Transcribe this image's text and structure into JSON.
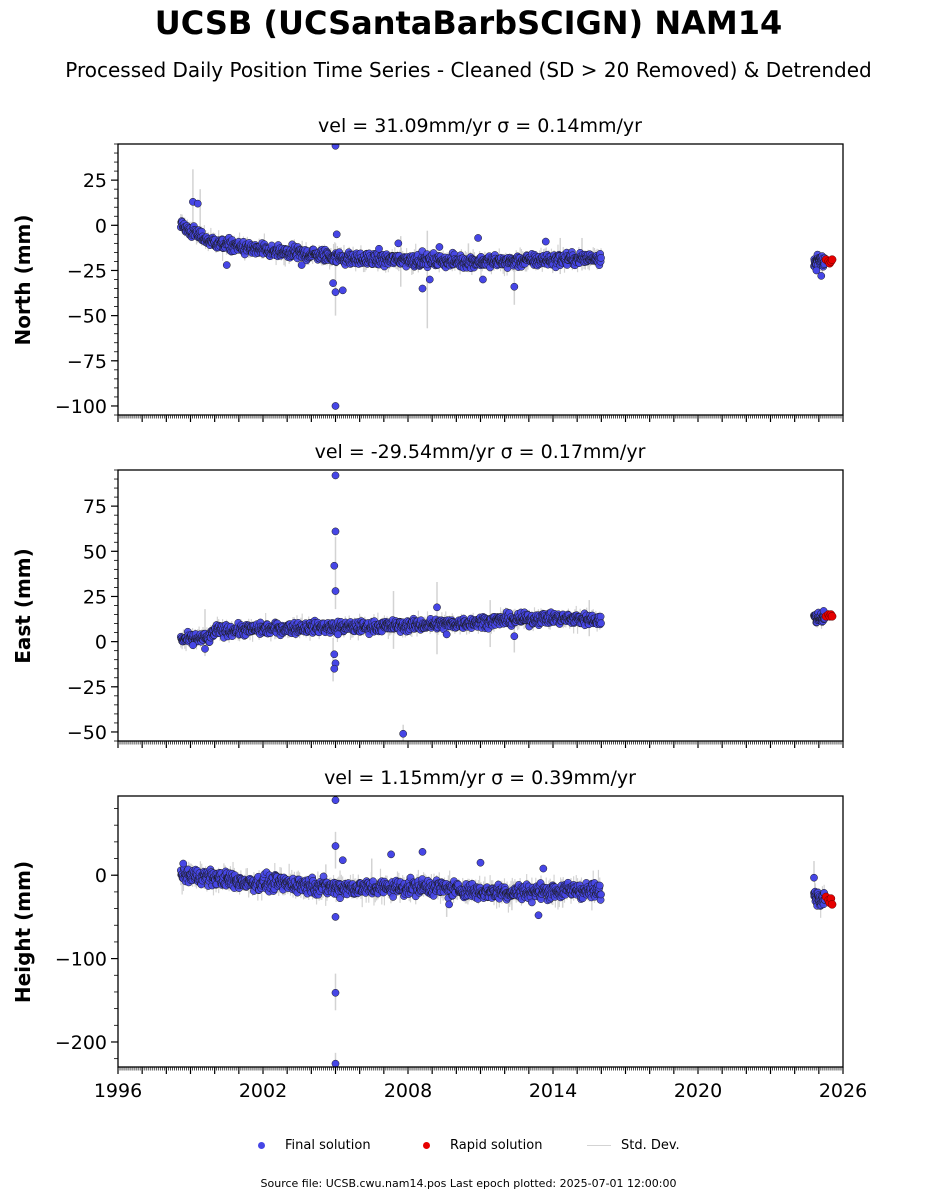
{
  "title": "UCSB (UCSantaBarbSCIGN) NAM14",
  "subtitle": "Processed Daily Position Time Series - Cleaned (SD > 20 Removed) & Detrended",
  "legend": {
    "final": "Final solution",
    "rapid": "Rapid solution",
    "std": "Std. Dev."
  },
  "footer": "Source file: UCSB.cwu.nam14.pos  Last epoch plotted: 2025-07-01 12:00:00",
  "colors": {
    "final": "#4646e6",
    "rapid": "#e60000",
    "std": "#d3d3d3",
    "edge": "#1a1a1a"
  },
  "chart_data": [
    {
      "type": "scatter",
      "title": "vel = 31.09mm/yr   σ = 0.14mm/yr",
      "ylabel": "North (mm)",
      "xlim": [
        1996,
        2026
      ],
      "ylim": [
        -105,
        45
      ],
      "yticks": [
        25,
        0,
        -25,
        -50,
        -75,
        -100
      ],
      "ytick_labels": [
        "25",
        "0",
        "−25",
        "−50",
        "−75",
        "−100"
      ],
      "trend": [
        [
          1998.6,
          0
        ],
        [
          1999.8,
          -9
        ],
        [
          2001,
          -12
        ],
        [
          2002.5,
          -15
        ],
        [
          2004,
          -16
        ],
        [
          2006,
          -19
        ],
        [
          2008,
          -19
        ],
        [
          2010,
          -20
        ],
        [
          2012,
          -20
        ],
        [
          2014,
          -19
        ],
        [
          2016,
          -18
        ],
        [
          2024.8,
          -20
        ],
        [
          2025.5,
          -19
        ]
      ],
      "rapid": [
        [
          2025.3,
          -19
        ],
        [
          2025.4,
          -20
        ],
        [
          2025.45,
          -21
        ],
        [
          2025.5,
          -20
        ],
        [
          2025.55,
          -19
        ]
      ],
      "outliers": [
        [
          2005.0,
          44
        ],
        [
          2005.0,
          -100
        ],
        [
          2005.0,
          -37
        ],
        [
          2005.3,
          -36
        ],
        [
          2004.9,
          -32
        ],
        [
          2005.05,
          -5
        ],
        [
          2008.6,
          -35
        ],
        [
          2008.9,
          -30
        ],
        [
          2012.4,
          -34
        ],
        [
          2003.6,
          -22
        ],
        [
          2010.9,
          -7
        ],
        [
          2007.6,
          -10
        ],
        [
          2009.3,
          -12
        ],
        [
          2011.1,
          -30
        ],
        [
          1999.1,
          13
        ],
        [
          1999.3,
          12
        ],
        [
          2000.5,
          -22
        ],
        [
          2013.7,
          -9
        ],
        [
          2006.8,
          -13
        ],
        [
          2024.9,
          -25
        ],
        [
          2025.1,
          -28
        ]
      ],
      "errorbars": [
        [
          1999.1,
          13,
          18
        ],
        [
          1999.4,
          5,
          15
        ],
        [
          2008.8,
          -30,
          27
        ],
        [
          2005.0,
          -30,
          20
        ],
        [
          2012.4,
          -34,
          10
        ],
        [
          2007.7,
          -20,
          14
        ],
        [
          2010.5,
          -18,
          8
        ],
        [
          2014.3,
          -17,
          10
        ],
        [
          2015.2,
          -16,
          9
        ]
      ]
    },
    {
      "type": "scatter",
      "title": "vel = -29.54mm/yr   σ = 0.17mm/yr",
      "ylabel": "East (mm)",
      "xlim": [
        1996,
        2026
      ],
      "ylim": [
        -55,
        95
      ],
      "yticks": [
        75,
        50,
        25,
        0,
        -25,
        -50
      ],
      "ytick_labels": [
        "75",
        "50",
        "25",
        "0",
        "−25",
        "−50"
      ],
      "trend": [
        [
          1998.6,
          1
        ],
        [
          1999.8,
          2
        ],
        [
          2000,
          6
        ],
        [
          2002,
          7
        ],
        [
          2004,
          8
        ],
        [
          2006,
          8
        ],
        [
          2008,
          9
        ],
        [
          2010,
          10
        ],
        [
          2012,
          12
        ],
        [
          2014,
          13
        ],
        [
          2016,
          12
        ],
        [
          2024.8,
          13
        ],
        [
          2025.5,
          14
        ]
      ],
      "rapid": [
        [
          2025.3,
          14
        ],
        [
          2025.4,
          15
        ],
        [
          2025.45,
          14
        ],
        [
          2025.5,
          15
        ],
        [
          2025.55,
          14
        ]
      ],
      "outliers": [
        [
          2005.0,
          92
        ],
        [
          2005.0,
          61
        ],
        [
          2004.95,
          42
        ],
        [
          2005.0,
          28
        ],
        [
          2004.95,
          -7
        ],
        [
          2005.0,
          -12
        ],
        [
          2004.95,
          -15
        ],
        [
          2007.8,
          -51
        ],
        [
          2009.2,
          19
        ],
        [
          2012.4,
          3
        ],
        [
          1999.6,
          -4
        ],
        [
          1999.1,
          -2
        ],
        [
          2005.1,
          4
        ],
        [
          2009.6,
          4
        ],
        [
          2025.2,
          17
        ]
      ],
      "errorbars": [
        [
          1999.6,
          5,
          13
        ],
        [
          2005.0,
          38,
          20
        ],
        [
          2004.9,
          -10,
          12
        ],
        [
          2007.4,
          12,
          16
        ],
        [
          2009.2,
          13,
          20
        ],
        [
          2011.4,
          10,
          13
        ],
        [
          2012.4,
          2,
          8
        ],
        [
          2015.5,
          13,
          10
        ],
        [
          2007.8,
          -51,
          5
        ]
      ]
    },
    {
      "type": "scatter",
      "title": "vel = 1.15mm/yr   σ = 0.39mm/yr",
      "ylabel": "Height (mm)",
      "xlim": [
        1996,
        2026
      ],
      "ylim": [
        -230,
        95
      ],
      "yticks": [
        0,
        -100,
        -200
      ],
      "ytick_labels": [
        "0",
        "−100",
        "−200"
      ],
      "xticks": [
        1996,
        2002,
        2008,
        2014,
        2020,
        2026
      ],
      "xtick_labels": [
        "1996",
        "2002",
        "2008",
        "2014",
        "2020",
        "2026"
      ],
      "trend": [
        [
          1998.6,
          0
        ],
        [
          1999.8,
          -2
        ],
        [
          2001,
          -8
        ],
        [
          2003,
          -10
        ],
        [
          2005,
          -15
        ],
        [
          2007,
          -15
        ],
        [
          2009,
          -14
        ],
        [
          2011,
          -20
        ],
        [
          2013,
          -20
        ],
        [
          2015,
          -18
        ],
        [
          2016,
          -20
        ],
        [
          2024.8,
          -25
        ],
        [
          2025.5,
          -28
        ]
      ],
      "rapid": [
        [
          2025.3,
          -26
        ],
        [
          2025.4,
          -30
        ],
        [
          2025.45,
          -33
        ],
        [
          2025.5,
          -28
        ],
        [
          2025.55,
          -35
        ]
      ],
      "outliers": [
        [
          2005.0,
          90
        ],
        [
          2005.0,
          35
        ],
        [
          2005.0,
          -50
        ],
        [
          2005.0,
          -141
        ],
        [
          2005.0,
          -226
        ],
        [
          2007.3,
          25
        ],
        [
          2008.6,
          28
        ],
        [
          2011.0,
          15
        ],
        [
          2013.6,
          8
        ],
        [
          2005.3,
          18
        ],
        [
          2013.4,
          -48
        ],
        [
          2009.7,
          -35
        ],
        [
          2024.8,
          -3
        ],
        [
          1998.7,
          14
        ]
      ],
      "errorbars": [
        [
          2005.0,
          -140,
          22
        ],
        [
          2005.0,
          30,
          22
        ],
        [
          2005.0,
          -225,
          12
        ],
        [
          2004.6,
          -5,
          18
        ],
        [
          2006.5,
          5,
          15
        ],
        [
          2009.6,
          -35,
          15
        ],
        [
          2012.3,
          -30,
          12
        ],
        [
          2014.4,
          -25,
          14
        ],
        [
          2024.8,
          5,
          12
        ]
      ]
    }
  ]
}
